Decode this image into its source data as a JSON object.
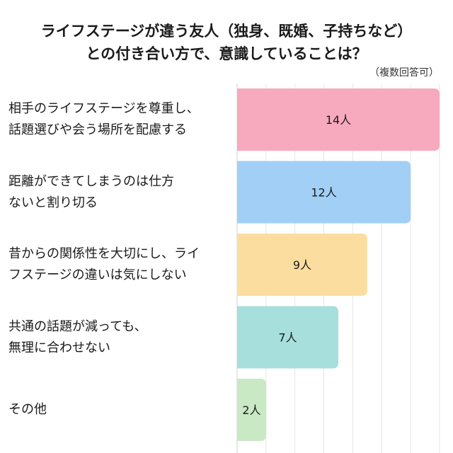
{
  "header": {
    "title_line1": "ライフステージが違う友人（独身、既婚、子持ちなど）",
    "title_line2": "との付き合い方で、意識していることは？",
    "note": "（複数回答可）"
  },
  "chart_data": {
    "type": "bar",
    "orientation": "horizontal",
    "title": "ライフステージが違う友人（独身、既婚、子持ちなど）との付き合い方で、意識していることは？",
    "note": "（複数回答可）",
    "categories": [
      [
        "相手のライフステージを尊重し、",
        "話題選びや会う場所を配慮する"
      ],
      [
        "距離ができてしまうのは仕方",
        "ないと割り切る"
      ],
      [
        "昔からの関係性を大切にし、ライ",
        "フステージの違いは気にしない"
      ],
      [
        "共通の話題が減っても、",
        "無理に合わせない"
      ],
      [
        "その他"
      ]
    ],
    "values": [
      14,
      12,
      9,
      7,
      2
    ],
    "value_labels": [
      "14人",
      "12人",
      "9人",
      "7人",
      "2人"
    ],
    "unit": "人",
    "xlim": [
      0,
      14
    ],
    "grid": true,
    "colors": [
      "#f7a9bd",
      "#a2cff5",
      "#fbde9f",
      "#a6dfdc",
      "#c9e8c4"
    ]
  }
}
